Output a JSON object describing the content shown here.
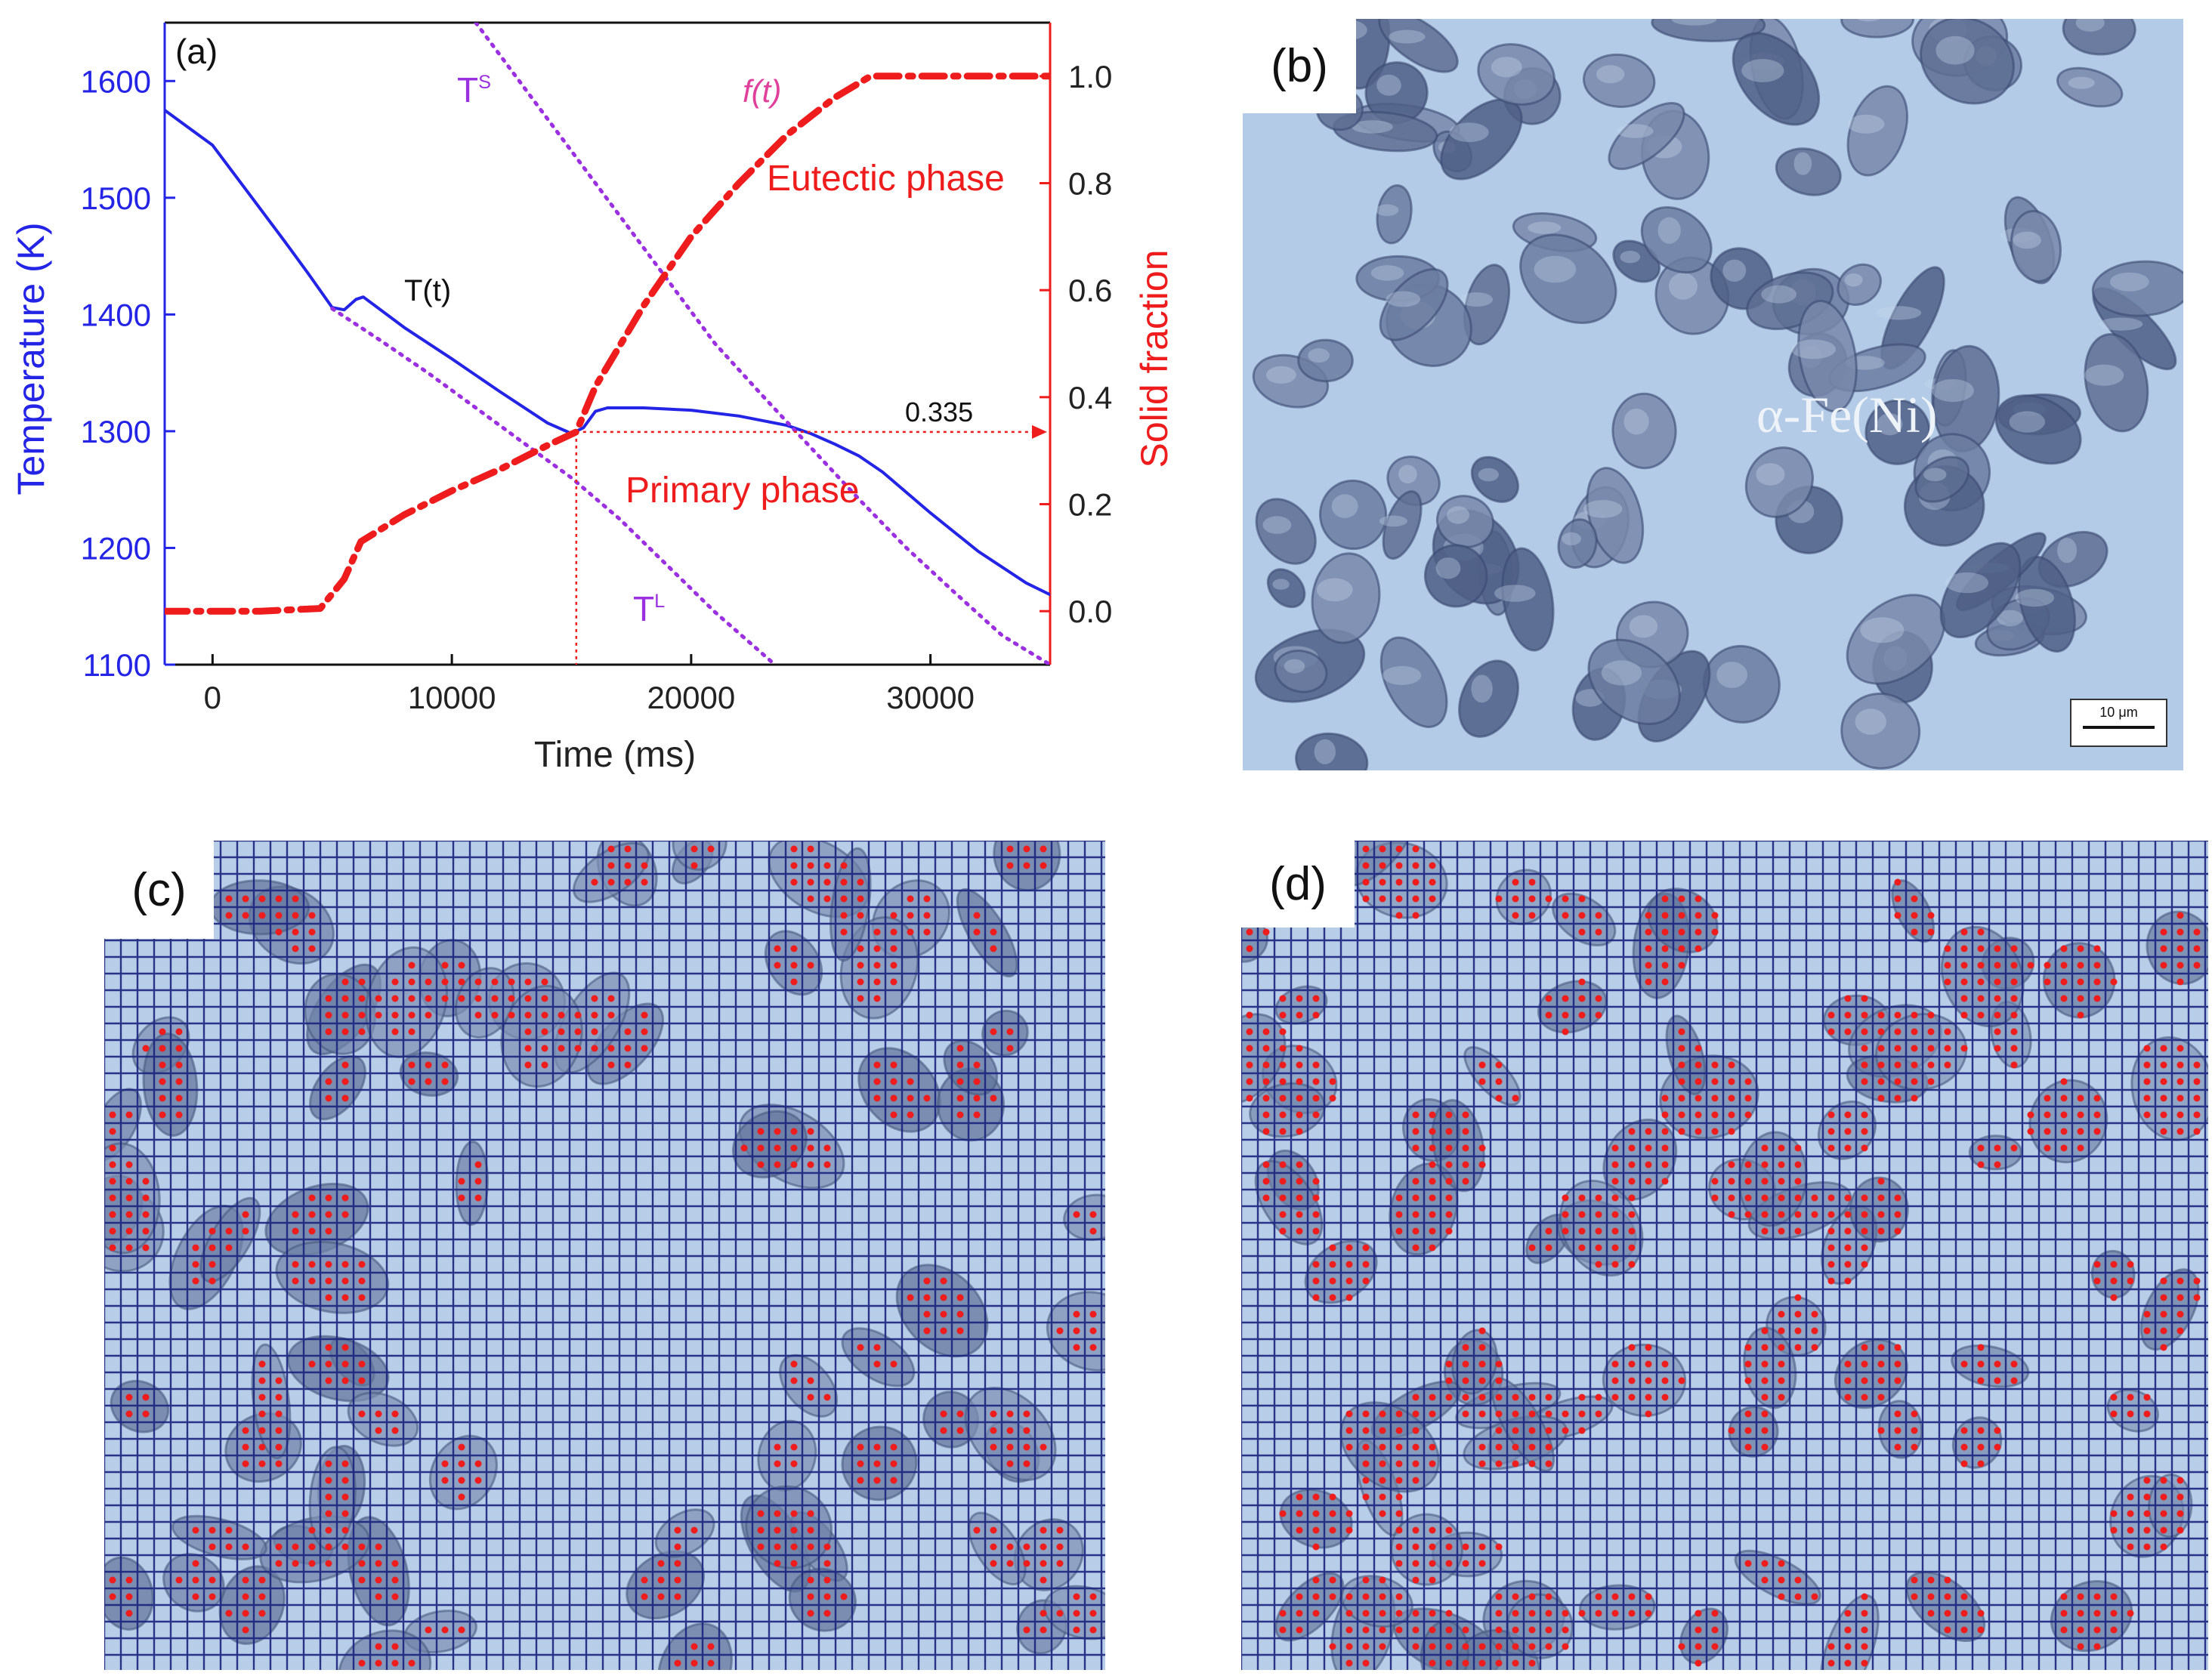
{
  "panels": {
    "a": {
      "label": "(a)"
    },
    "b": {
      "label": "(b)",
      "phase_label": "α-Fe(Ni)",
      "scale_bar": "10 μm"
    },
    "c": {
      "label": "(c)"
    },
    "d": {
      "label": "(d)"
    }
  },
  "colors": {
    "temperature": "#2424e6",
    "fraction": "#ee1c1c",
    "liquidus": "#9b30e0",
    "micro_bg": "#a9c3e3",
    "particle": "#4a5d8a",
    "grid": "#1a237e"
  },
  "chart_data": {
    "type": "line",
    "panel": "(a)",
    "xlabel": "Time (ms)",
    "ylabel_left": "Temperature (K)",
    "ylabel_right": "Solid fraction",
    "xlim": [
      -2000,
      35000
    ],
    "ylim_left": [
      1100,
      1650
    ],
    "ylim_right": [
      -0.1,
      1.1
    ],
    "xticks": [
      0,
      10000,
      20000,
      30000
    ],
    "yticks_left": [
      1100,
      1200,
      1300,
      1400,
      1500,
      1600
    ],
    "yticks_right": [
      0.0,
      0.2,
      0.4,
      0.6,
      0.8,
      1.0
    ],
    "series": [
      {
        "name": "T(t)",
        "axis": "left",
        "style": "solid",
        "x": [
          -2000,
          0,
          1500,
          3000,
          4000,
          5000,
          5500,
          6000,
          6300,
          8000,
          10000,
          12000,
          14000,
          15000,
          15500,
          16000,
          16500,
          18000,
          20000,
          22000,
          24000,
          25000,
          26000,
          27000,
          28000,
          30000,
          32000,
          34000,
          35000
        ],
        "y": [
          1575,
          1545,
          1504,
          1463,
          1435,
          1406,
          1404,
          1413,
          1415,
          1389,
          1362,
          1334,
          1307,
          1298,
          1303,
          1317,
          1320,
          1320,
          1318,
          1313,
          1305,
          1298,
          1289,
          1279,
          1265,
          1230,
          1197,
          1170,
          1160
        ]
      },
      {
        "name": "T^S",
        "axis": "left",
        "style": "dotted",
        "x": [
          11000,
          13000,
          15000,
          17000,
          19000,
          21000,
          23000,
          25000,
          27000,
          29000,
          31000,
          33000,
          35000
        ],
        "y": [
          1650,
          1595,
          1540,
          1485,
          1430,
          1375,
          1330,
          1286,
          1242,
          1200,
          1162,
          1125,
          1100
        ]
      },
      {
        "name": "T^L",
        "axis": "left",
        "style": "dotted",
        "x": [
          5000,
          7000,
          9000,
          11000,
          13000,
          15000,
          17000,
          19000,
          21000,
          23500
        ],
        "y": [
          1405,
          1378,
          1350,
          1320,
          1290,
          1260,
          1225,
          1185,
          1145,
          1100
        ]
      },
      {
        "name": "f(t)",
        "axis": "right",
        "style": "dashdot",
        "x": [
          -2000,
          0,
          2000,
          4500,
          5500,
          6200,
          8000,
          10000,
          12000,
          14000,
          15200,
          16000,
          18000,
          20000,
          22000,
          24000,
          26000,
          27500,
          30000,
          35000
        ],
        "y": [
          0.0,
          0.0,
          0.0,
          0.005,
          0.06,
          0.13,
          0.18,
          0.225,
          0.265,
          0.31,
          0.335,
          0.42,
          0.57,
          0.7,
          0.8,
          0.89,
          0.96,
          1.0,
          1.0,
          1.0
        ]
      }
    ],
    "annotations": [
      {
        "text": "T(t)",
        "color": "#111111"
      },
      {
        "text": "T",
        "sup": "S",
        "color": "#9b30e0"
      },
      {
        "text": "T",
        "sup": "L",
        "color": "#9b30e0"
      },
      {
        "text": "f(t)",
        "color": "#e0409b"
      },
      {
        "text": "Eutectic phase",
        "color": "#ee1c1c"
      },
      {
        "text": "Primary phase",
        "color": "#ee1c1c"
      },
      {
        "text": "0.335",
        "color": "#111111"
      }
    ],
    "marker": {
      "x": 15200,
      "f": 0.335
    }
  }
}
